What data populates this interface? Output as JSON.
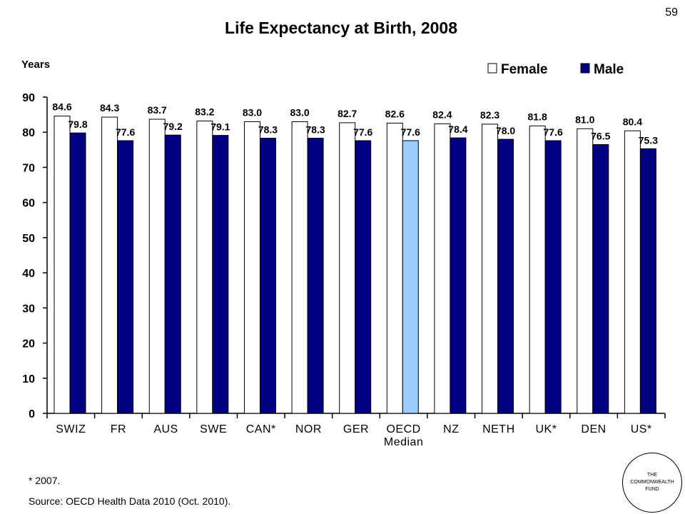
{
  "page_number": "59",
  "footnote": "* 2007.",
  "source": "Source: OECD Health Data 2010 (Oct. 2010).",
  "logo": {
    "lines": [
      "THE",
      "COMMONWEALTH",
      "FUND"
    ]
  },
  "colors": {
    "female": "#ffffff",
    "male": "#000080",
    "median": "#99ccff",
    "outline": "#000000"
  },
  "chart_data": {
    "type": "bar",
    "title": "Life Expectancy at Birth, 2008",
    "ylabel": "Years",
    "xlabel": "",
    "ylim": [
      0,
      90
    ],
    "yticks": [
      0,
      10,
      20,
      30,
      40,
      50,
      60,
      70,
      80,
      90
    ],
    "grid": false,
    "legend_position": "top-right",
    "categories": [
      "SWIZ",
      "FR",
      "AUS",
      "SWE",
      "CAN*",
      "NOR",
      "GER",
      "OECD Median",
      "NZ",
      "NETH",
      "UK*",
      "DEN",
      "US*"
    ],
    "category_lines": [
      [
        "SWIZ"
      ],
      [
        "FR"
      ],
      [
        "AUS"
      ],
      [
        "SWE"
      ],
      [
        "CAN*"
      ],
      [
        "NOR"
      ],
      [
        "GER"
      ],
      [
        "OECD",
        "Median"
      ],
      [
        "NZ"
      ],
      [
        "NETH"
      ],
      [
        "UK*"
      ],
      [
        "DEN"
      ],
      [
        "US*"
      ]
    ],
    "highlight_category": "OECD Median",
    "series": [
      {
        "name": "Female",
        "values": [
          84.6,
          84.3,
          83.7,
          83.2,
          83.0,
          83.0,
          82.7,
          82.6,
          82.4,
          82.3,
          81.8,
          81.0,
          80.4
        ]
      },
      {
        "name": "Male",
        "values": [
          79.8,
          77.6,
          79.2,
          79.1,
          78.3,
          78.3,
          77.6,
          77.6,
          78.4,
          78.0,
          77.6,
          76.5,
          75.3
        ]
      }
    ]
  }
}
